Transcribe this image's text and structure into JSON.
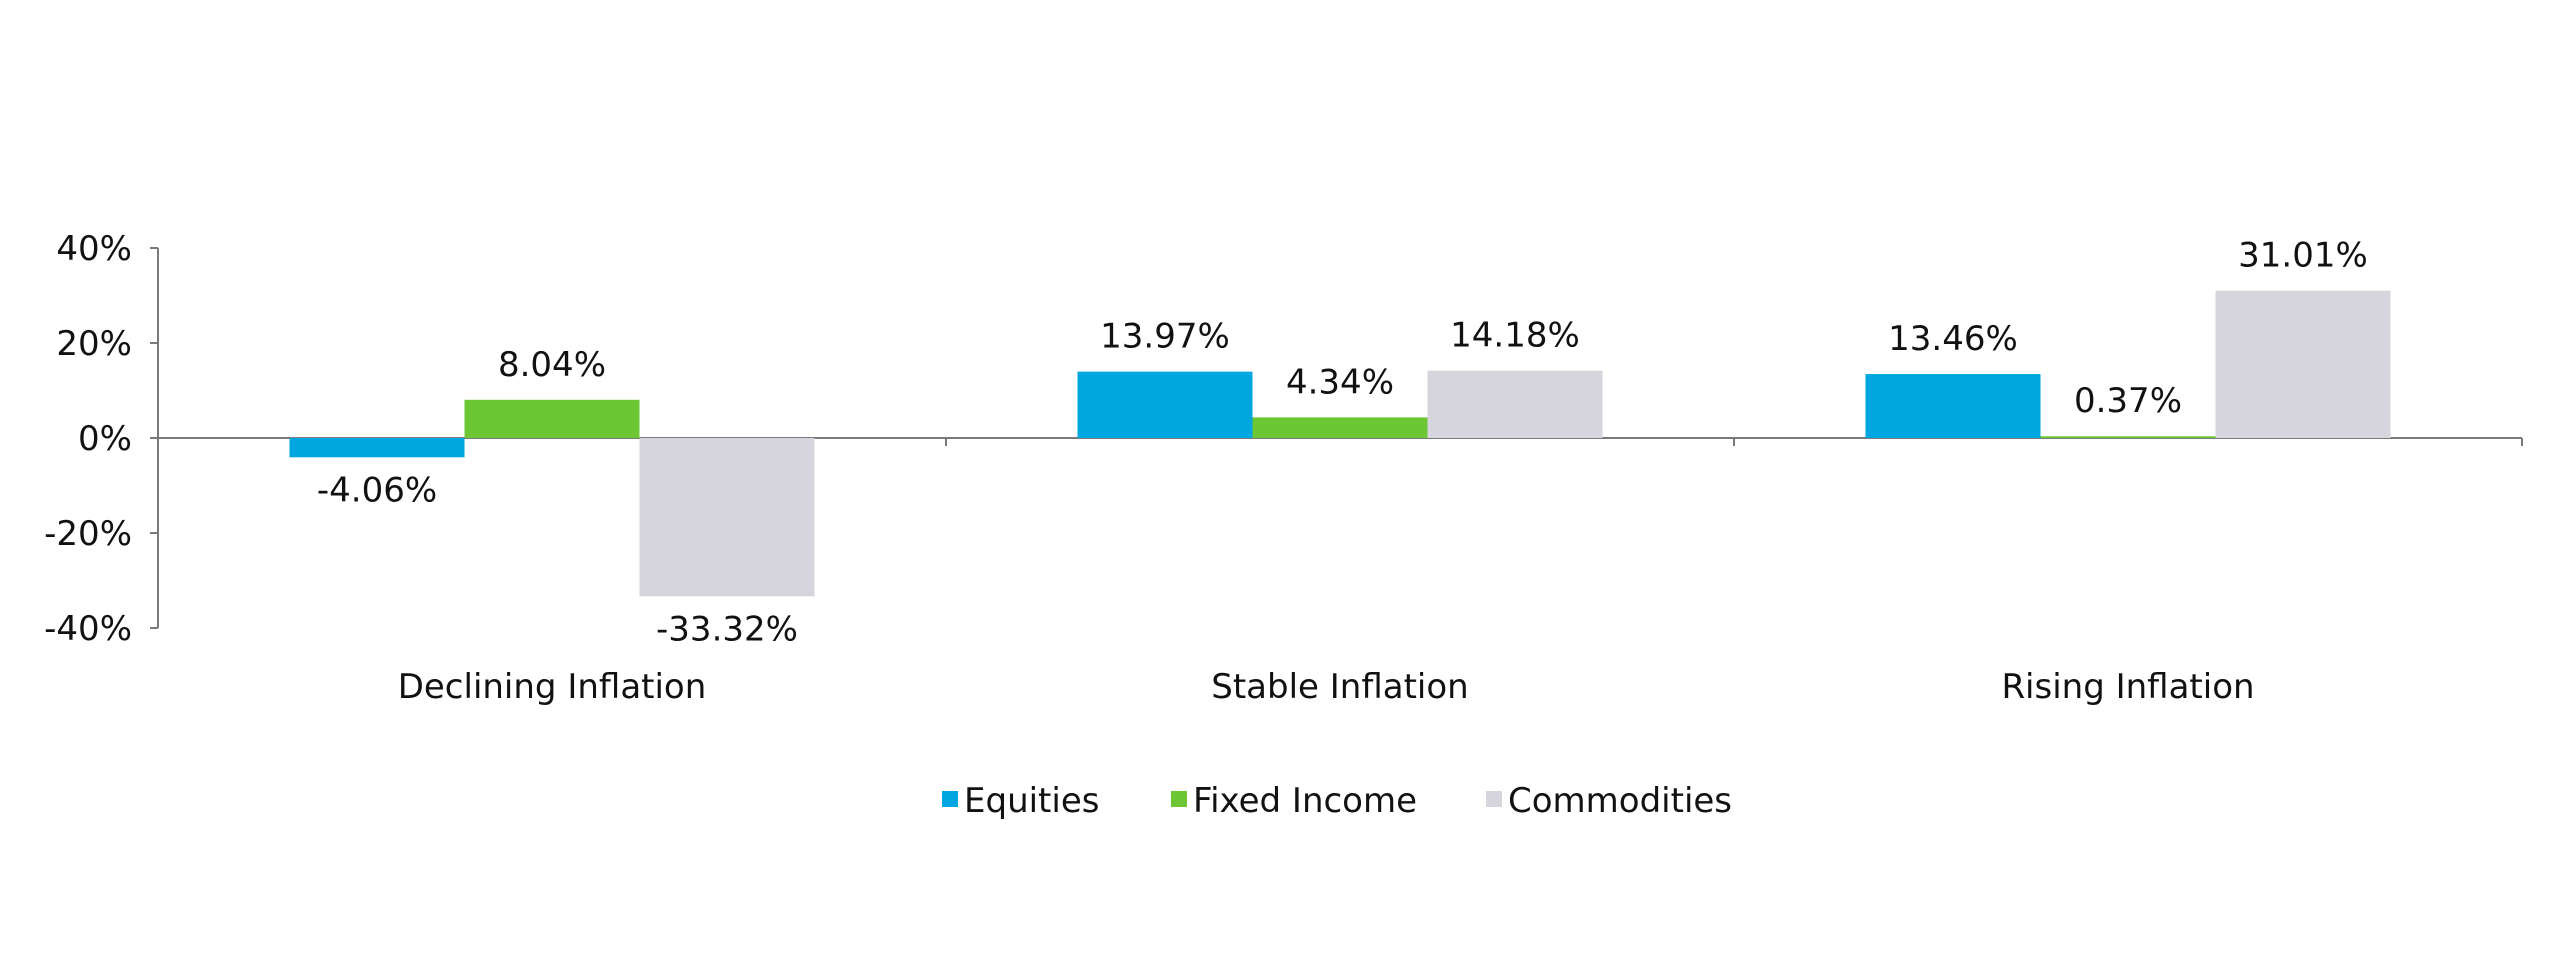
{
  "chart_data": {
    "type": "bar",
    "title": "",
    "xlabel": "",
    "ylabel": "",
    "categories": [
      "Declining Inflation",
      "Stable Inflation",
      "Rising Inflation"
    ],
    "series": [
      {
        "name": "Equities",
        "color": "#00a6df",
        "values": [
          -4.06,
          13.97,
          13.46
        ],
        "labels": [
          "-4.06%",
          "13.97%",
          "13.46%"
        ]
      },
      {
        "name": "Fixed Income",
        "color": "#6dc735",
        "values": [
          8.04,
          4.34,
          0.37
        ],
        "labels": [
          "8.04%",
          "4.34%",
          "0.37%"
        ]
      },
      {
        "name": "Commodities",
        "color": "#d6d5de",
        "values": [
          -33.32,
          14.18,
          31.01
        ],
        "labels": [
          "-33.32%",
          "14.18%",
          "31.01%"
        ]
      }
    ],
    "ylim": [
      -40,
      40
    ],
    "yticks": [
      40,
      20,
      0,
      -20,
      -40
    ],
    "ytick_labels": [
      "40%",
      "20%",
      "0%",
      "-20%",
      "-40%"
    ],
    "grid": false,
    "legend_position": "bottom-center"
  }
}
